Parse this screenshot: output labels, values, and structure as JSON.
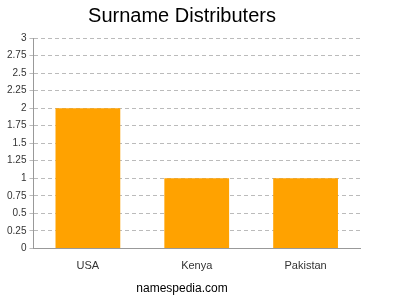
{
  "chart_data": {
    "type": "bar",
    "title": "Surname Distributers",
    "categories": [
      "USA",
      "Kenya",
      "Pakistan"
    ],
    "values": [
      2,
      1,
      1
    ],
    "color": "#ffa200",
    "ylim": [
      0,
      3
    ],
    "yticks": [
      0,
      0.25,
      0.5,
      0.75,
      1,
      1.25,
      1.5,
      1.75,
      2,
      2.25,
      2.5,
      2.75,
      3
    ],
    "grid": true,
    "annotations": [
      "namespedia.com"
    ]
  }
}
